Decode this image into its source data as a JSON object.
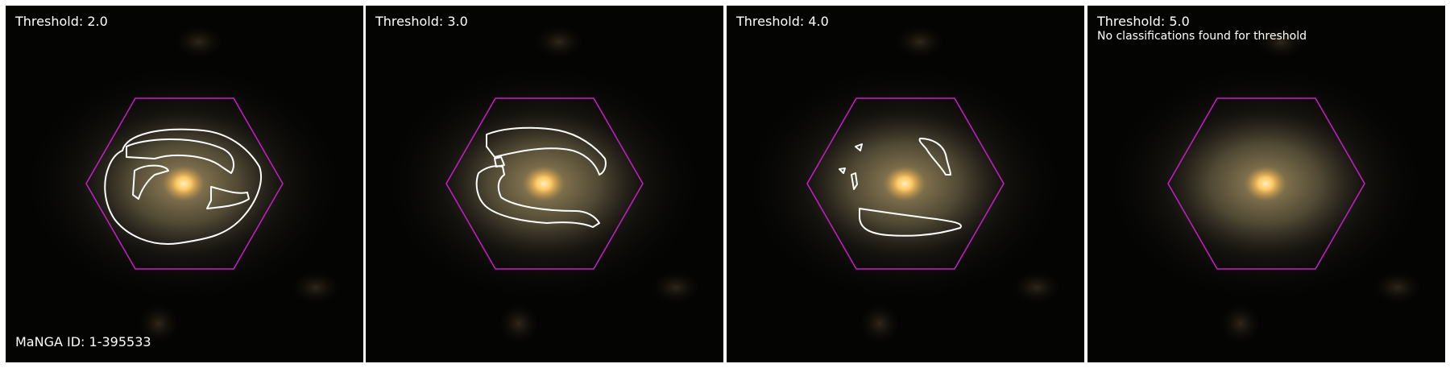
{
  "figure": {
    "manga_id_label": "MaNGA ID: 1-395533",
    "colors": {
      "hexagon": "#c81ec8",
      "contour": "#ffffff",
      "background": "#040403",
      "galaxy_core": "#ffd27a"
    },
    "panels": [
      {
        "title": "Threshold: 2.0",
        "note": ""
      },
      {
        "title": "Threshold: 3.0",
        "note": ""
      },
      {
        "title": "Threshold: 4.0",
        "note": ""
      },
      {
        "title": "Threshold: 5.0",
        "note": "No classifications found for threshold"
      }
    ]
  }
}
